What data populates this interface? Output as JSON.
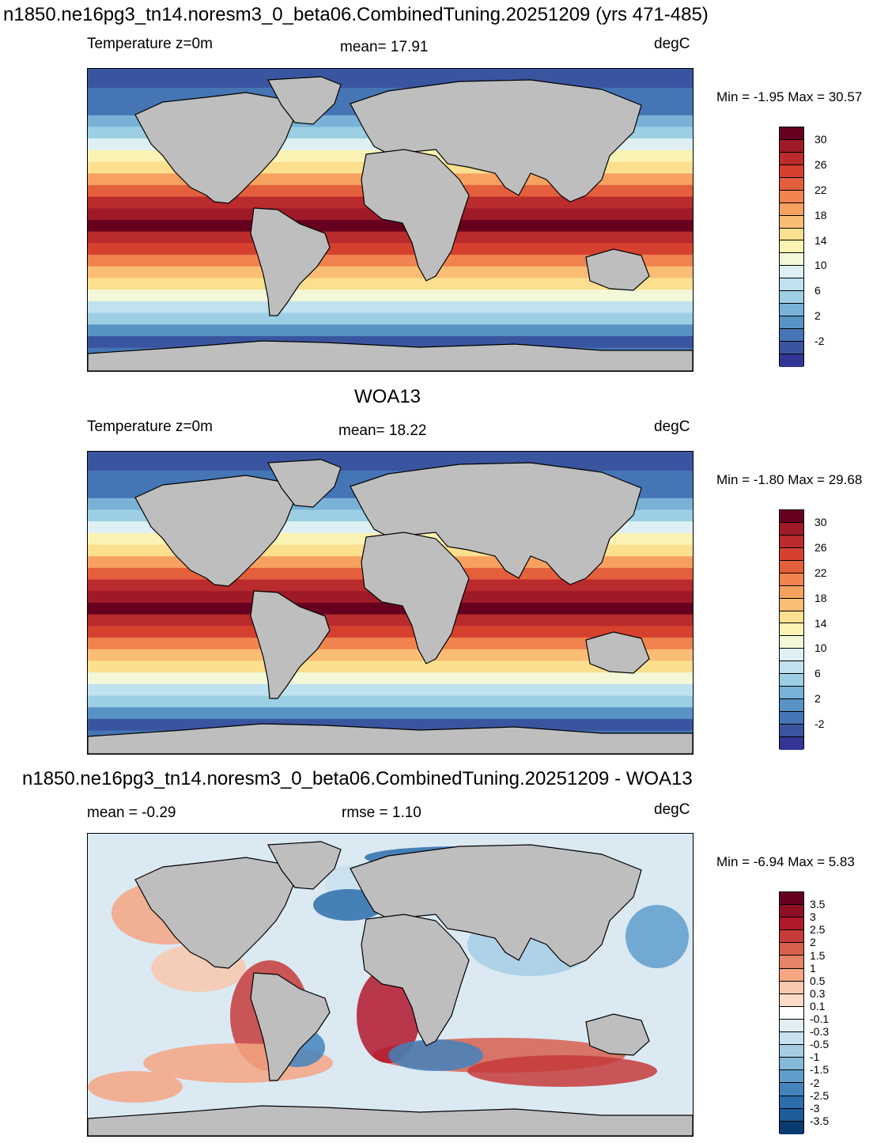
{
  "panels": [
    {
      "title": "n1850.ne16pg3_tn14.noresm3_0_beta06.CombinedTuning.20251209 (yrs 471-485)",
      "left_label": "Temperature z=0m",
      "mid_label": "mean=  17.91",
      "units": "degC",
      "minmax": "Min =  -1.95 Max =  30.57"
    },
    {
      "title": "WOA13",
      "left_label": "Temperature z=0m",
      "mid_label": "mean=  18.22",
      "units": "degC",
      "minmax": "Min =  -1.80 Max =  29.68"
    },
    {
      "title": "n1850.ne16pg3_tn14.noresm3_0_beta06.CombinedTuning.20251209 - WOA13",
      "left_label": "mean =  -0.29",
      "mid_label": "rmse =   1.10",
      "units": "degC",
      "minmax": "Min =  -6.94 Max =   5.83"
    }
  ],
  "temp_colorbar": {
    "colors": [
      "#67001f",
      "#9e1a28",
      "#b92b2d",
      "#d6412f",
      "#e45f3c",
      "#f08350",
      "#f7a160",
      "#fbbd74",
      "#fce090",
      "#fbf3b4",
      "#f2f8d8",
      "#dff0f4",
      "#bfe2ee",
      "#9dcfe4",
      "#79b2d6",
      "#5793c4",
      "#4575b4",
      "#3a55a0",
      "#313695"
    ],
    "ticks": [
      "30",
      "26",
      "22",
      "18",
      "14",
      "10",
      "6",
      "2",
      "-2"
    ]
  },
  "diff_colorbar": {
    "colors": [
      "#67001f",
      "#8c0f24",
      "#b2182b",
      "#c63b3a",
      "#d6604d",
      "#e58368",
      "#f4a582",
      "#f8c8ae",
      "#fddbc7",
      "#ffffff",
      "#e2eef6",
      "#c9e0ef",
      "#a7cde4",
      "#85b9d9",
      "#5f9ecb",
      "#4384bc",
      "#2c6dac",
      "#1d5a98",
      "#083a72"
    ],
    "ticks": [
      "3.5",
      "3",
      "2.5",
      "2",
      "1.5",
      "1",
      "0.5",
      "0.3",
      "0.1",
      "-0.1",
      "-0.3",
      "-0.5",
      "-1",
      "-1.5",
      "-2",
      "-2.5",
      "-3",
      "-3.5"
    ]
  },
  "map_colors": {
    "land": "#bebebe",
    "coast": "#000000",
    "ice": "#3a55a0"
  }
}
